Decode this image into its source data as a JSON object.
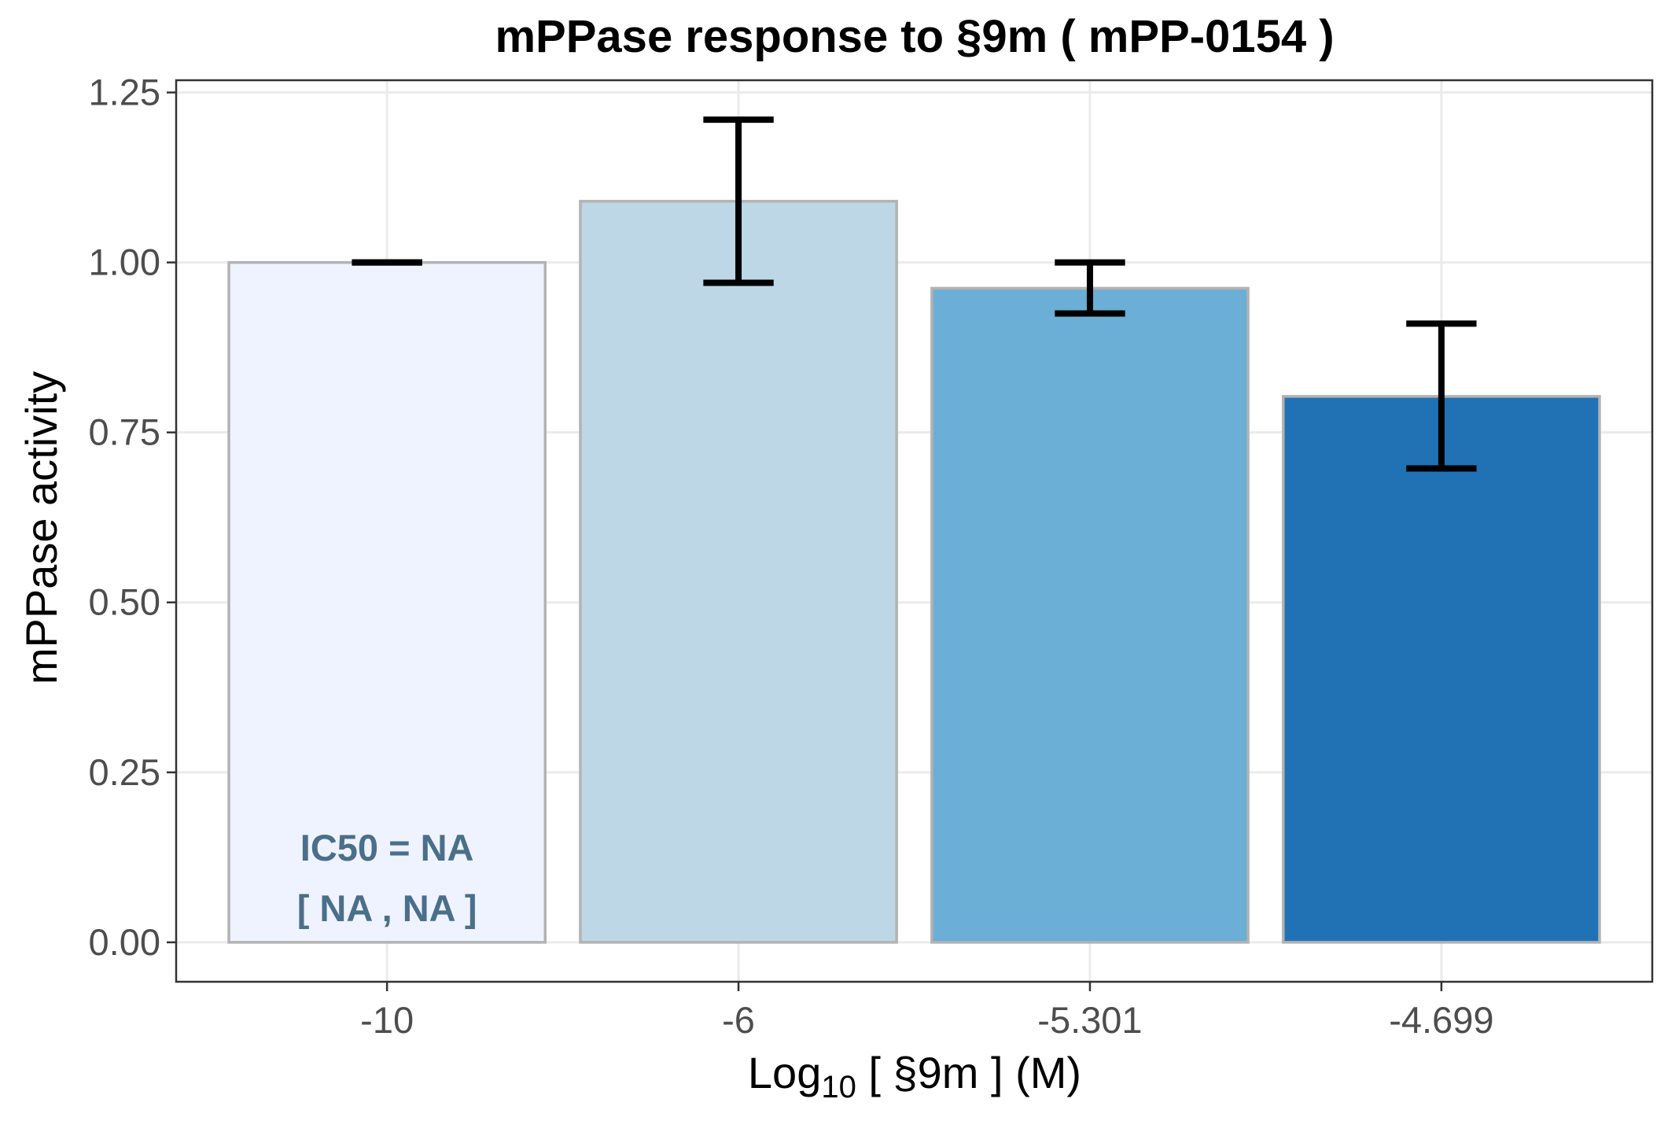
{
  "colors": {
    "bars": [
      "#eff3ff",
      "#bdd7e7",
      "#6baed6",
      "#2171b5"
    ],
    "bar_outline": "#b3b3b3",
    "grid": "#ebebeb",
    "annotation": "#4a6f8a",
    "error_bar": "#000000"
  },
  "chart_data": {
    "type": "bar",
    "title": "mPPase response to §9m ( mPP-0154 )",
    "xlabel_main": "Log",
    "xlabel_sub": "10",
    "xlabel_rest": " [ §9m ] (M)",
    "ylabel": "mPPase activity",
    "categories": [
      "-10",
      "-6",
      "-5.301",
      "-4.699"
    ],
    "values": [
      1.0,
      1.09,
      0.962,
      0.803
    ],
    "error_low": [
      1.0,
      0.97,
      0.925,
      0.697
    ],
    "error_high": [
      1.0,
      1.21,
      1.0,
      0.91
    ],
    "ylim": [
      -0.058,
      1.268
    ],
    "yticks": [
      0.0,
      0.25,
      0.5,
      0.75,
      1.0,
      1.25
    ],
    "ytick_labels": [
      "0.00",
      "0.25",
      "0.50",
      "0.75",
      "1.00",
      "1.25"
    ],
    "grid": true,
    "annotations": [
      "IC50 = NA",
      "[ NA , NA ]"
    ]
  }
}
